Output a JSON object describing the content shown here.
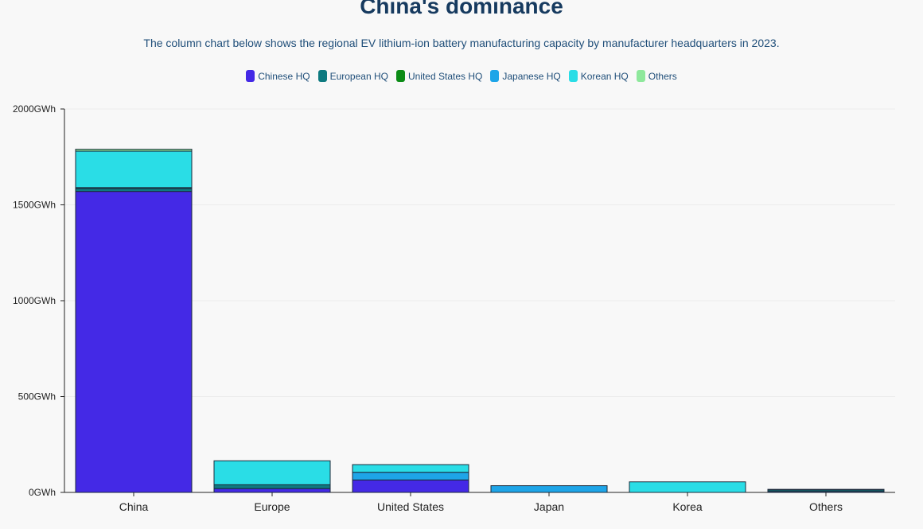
{
  "chart_data": {
    "type": "bar",
    "stacked": true,
    "title": "China's dominance",
    "subtitle": "The column chart below shows the regional EV lithium-ion battery manufacturing capacity by manufacturer headquarters in 2023.",
    "categories": [
      "China",
      "Europe",
      "United States",
      "Japan",
      "Korea",
      "Others"
    ],
    "series": [
      {
        "name": "Chinese HQ",
        "color": "#4429e6",
        "values": [
          1570,
          20,
          65,
          0,
          0,
          5
        ]
      },
      {
        "name": "European HQ",
        "color": "#0e7a80",
        "values": [
          15,
          20,
          0,
          0,
          0,
          8
        ]
      },
      {
        "name": "United States HQ",
        "color": "#0c8c16",
        "values": [
          0,
          0,
          0,
          0,
          0,
          0
        ]
      },
      {
        "name": "Japanese HQ",
        "color": "#1ea5e8",
        "values": [
          5,
          0,
          40,
          35,
          0,
          3
        ]
      },
      {
        "name": "Korean HQ",
        "color": "#2adde6",
        "values": [
          190,
          125,
          40,
          0,
          55,
          0
        ]
      },
      {
        "name": "Others",
        "color": "#8ee89c",
        "values": [
          10,
          0,
          0,
          0,
          0,
          0
        ]
      }
    ],
    "ylim": [
      0,
      2000
    ],
    "yticks": [
      "0GWh",
      "500GWh",
      "1000GWh",
      "1500GWh",
      "2000GWh"
    ],
    "ytick_values": [
      0,
      500,
      1000,
      1500,
      2000
    ],
    "xlabel": "",
    "ylabel": "",
    "grid": true,
    "legend_position": "top"
  }
}
